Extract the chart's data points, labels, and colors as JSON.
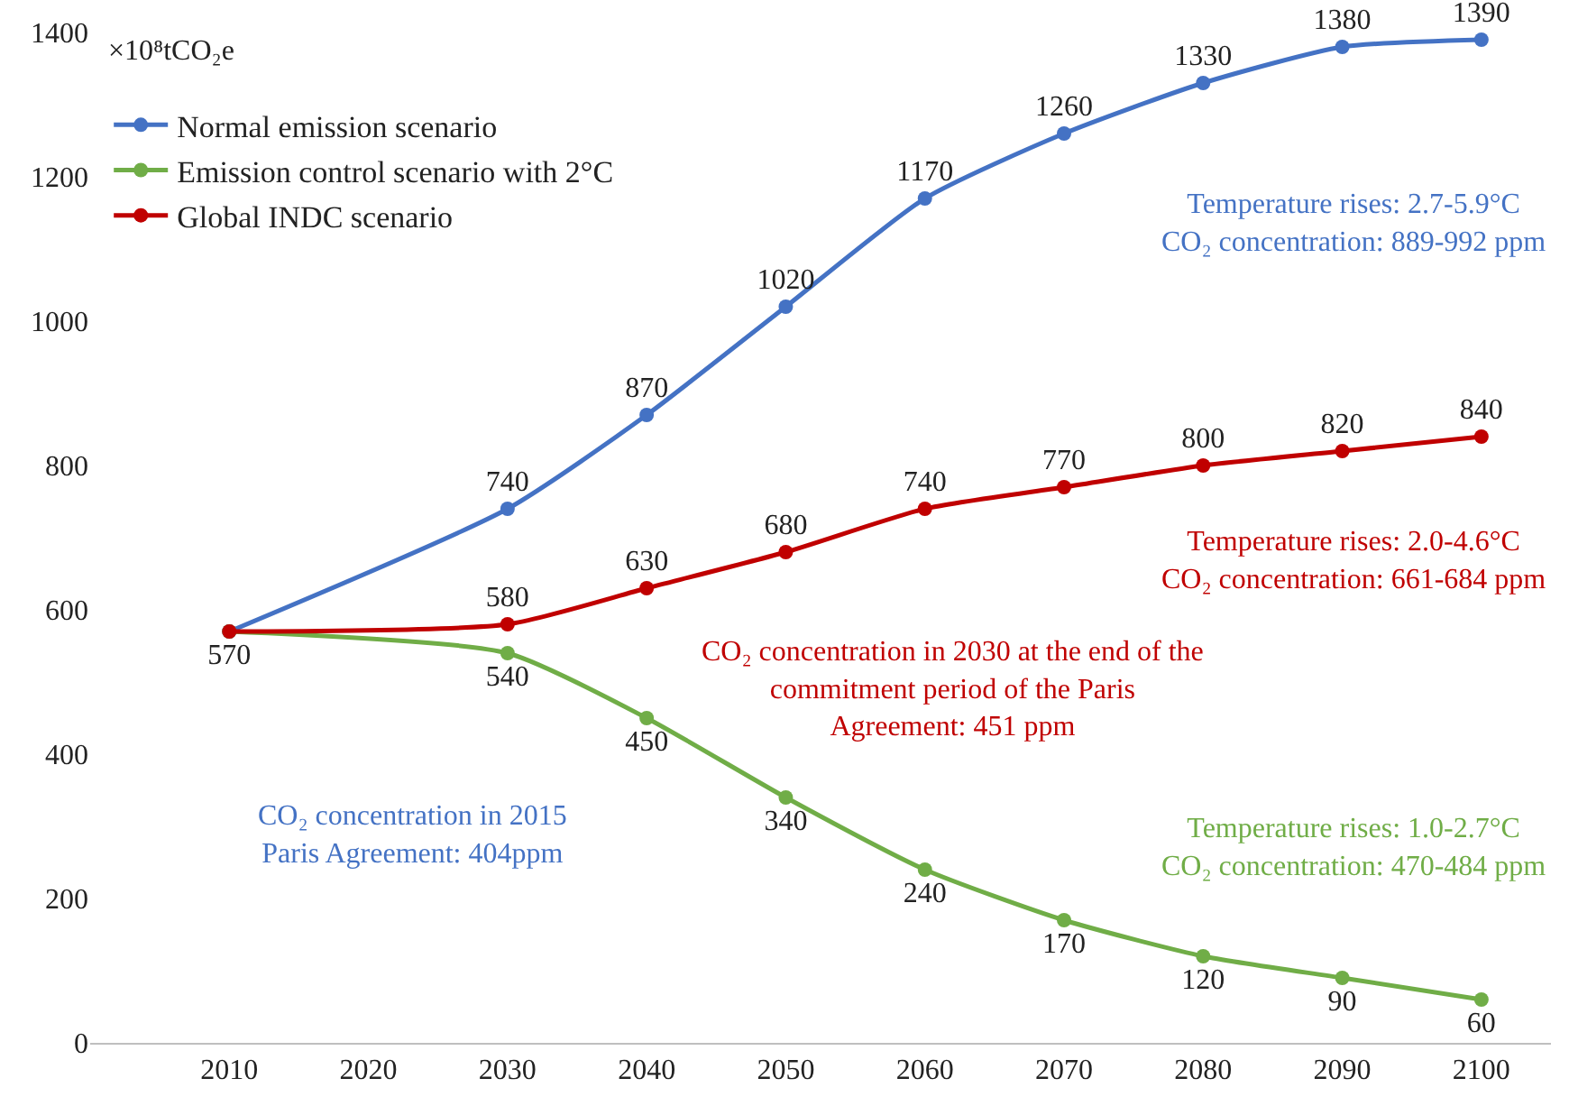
{
  "chart_data": {
    "type": "line",
    "ylabel": "×10⁸tCO₂e",
    "x": [
      2010,
      2030,
      2040,
      2050,
      2060,
      2070,
      2080,
      2090,
      2100
    ],
    "series": [
      {
        "name": "Normal emission scenario",
        "color": "#4472c4",
        "values": [
          570,
          740,
          870,
          1020,
          1170,
          1260,
          1330,
          1380,
          1390
        ],
        "value_labels": [
          null,
          "740",
          "870",
          "1020",
          "1170",
          "1260",
          "1330",
          "1380",
          "1390"
        ]
      },
      {
        "name": "Emission control scenario with 2°C",
        "color": "#70ad47",
        "values": [
          570,
          540,
          450,
          340,
          240,
          170,
          120,
          90,
          60
        ],
        "value_labels": [
          "570",
          "540",
          "450",
          "340",
          "240",
          "170",
          "120",
          "90",
          "60"
        ]
      },
      {
        "name": "Global INDC scenario",
        "color": "#c00000",
        "values": [
          570,
          580,
          630,
          680,
          740,
          770,
          800,
          820,
          840
        ],
        "value_labels": [
          null,
          "580",
          "630",
          "680",
          "740",
          "770",
          "800",
          "820",
          "840"
        ]
      }
    ],
    "xlim": [
      2000,
      2105
    ],
    "ylim": [
      0,
      1400
    ],
    "xticks": [
      2010,
      2020,
      2030,
      2040,
      2050,
      2060,
      2070,
      2080,
      2090,
      2100
    ],
    "yticks": [
      0,
      200,
      400,
      600,
      800,
      1000,
      1200,
      1400
    ],
    "legend": "top left",
    "marker": "circle",
    "line_style": "solid",
    "annotations": [
      "Temperature rises: 2.7-5.9°C\nCO₂ concentration: 889-992 ppm",
      "Temperature rises: 2.0-4.6°C\nCO₂ concentration: 661-684 ppm",
      "CO₂ concentration in 2030 at the end of the\ncommitment period of the Paris\nAgreement: 451 ppm",
      "CO₂ concentration in 2015\nParis Agreement: 404ppm",
      "Temperature rises: 1.0-2.7°C\nCO₂ concentration: 470-484 ppm"
    ]
  }
}
